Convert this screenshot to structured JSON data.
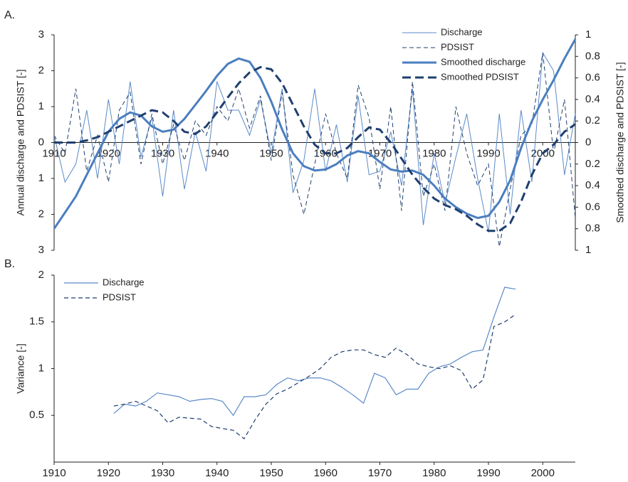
{
  "chart_data": [
    {
      "type": "line",
      "panel_label": "A.",
      "ylabel": "Annual  discharge and PDSIST [-]",
      "y2label": "Smoothed discharge and PDSIST [-]",
      "x": [
        1910,
        1912,
        1914,
        1916,
        1918,
        1920,
        1922,
        1924,
        1926,
        1928,
        1930,
        1932,
        1934,
        1936,
        1938,
        1940,
        1942,
        1944,
        1946,
        1948,
        1950,
        1952,
        1954,
        1956,
        1958,
        1960,
        1962,
        1964,
        1966,
        1968,
        1970,
        1972,
        1974,
        1976,
        1978,
        1980,
        1982,
        1984,
        1986,
        1988,
        1990,
        1992,
        1994,
        1996,
        1998,
        2000,
        2002,
        2004,
        2006
      ],
      "xlim": [
        1910,
        2006
      ],
      "xticks": [
        1910,
        1920,
        1930,
        1940,
        1950,
        1960,
        1970,
        1980,
        1990,
        2000
      ],
      "ylim": [
        -3,
        3
      ],
      "yticks": [
        {
          "value": -3,
          "label": "3"
        },
        {
          "value": -2,
          "label": "2"
        },
        {
          "value": -1,
          "label": "1"
        },
        0,
        1,
        2,
        3
      ],
      "y2lim": [
        -1,
        1
      ],
      "y2ticks": [
        {
          "value": -1,
          "label": "1"
        },
        {
          "value": -0.8,
          "label": "0.8"
        },
        {
          "value": -0.6,
          "label": "0.6"
        },
        {
          "value": -0.4,
          "label": "0.4"
        },
        {
          "value": -0.2,
          "label": "0.2"
        },
        0,
        0.2,
        0.4,
        0.6,
        0.8,
        1
      ],
      "legend": "top-right",
      "series": [
        {
          "name": "Discharge",
          "color": "#5b8ac8",
          "line_style": "solid",
          "line_width": 1,
          "values": [
            0.2,
            -1.1,
            -0.6,
            0.9,
            -1.0,
            1.2,
            -0.6,
            1.7,
            -0.4,
            0.7,
            -1.5,
            0.9,
            -1.3,
            0.3,
            -0.8,
            1.7,
            0.9,
            0.9,
            0.2,
            1.2,
            -0.3,
            1.5,
            -1.4,
            -0.5,
            1.5,
            -0.8,
            0.5,
            -1.1,
            1.3,
            -0.9,
            -0.8,
            0.3,
            -1.2,
            1.5,
            -2.3,
            -0.3,
            -1.7,
            -0.4,
            0.8,
            -1.0,
            -2.5,
            0.8,
            -2.0,
            0.9,
            -1.1,
            2.5,
            2.0,
            -0.9,
            0.8
          ]
        },
        {
          "name": "PDSIST",
          "color": "#1f3f6e",
          "line_style": "dashed",
          "line_width": 1,
          "values": [
            0.2,
            -0.3,
            1.5,
            -0.8,
            0.2,
            -1.1,
            0.9,
            1.4,
            -0.6,
            0.8,
            -0.6,
            0.5,
            -0.5,
            0.6,
            0.2,
            1.0,
            0.6,
            1.5,
            0.4,
            1.3,
            -0.5,
            1.4,
            -0.9,
            -2.0,
            -0.6,
            0.8,
            -0.3,
            -1.0,
            1.6,
            0.7,
            -1.3,
            1.0,
            -1.9,
            1.7,
            -1.5,
            -0.6,
            -1.9,
            1.0,
            -0.3,
            -1.2,
            -0.6,
            -2.9,
            -1.3,
            0.2,
            0.5,
            2.5,
            -0.3,
            1.2,
            -2.1
          ]
        },
        {
          "name": "Smoothed discharge",
          "color": "#4a7ebf",
          "line_style": "solid",
          "line_width": 3,
          "axis": "y2",
          "values": [
            -0.8,
            -0.65,
            -0.5,
            -0.3,
            -0.1,
            0.1,
            0.22,
            0.28,
            0.25,
            0.15,
            0.1,
            0.12,
            0.22,
            0.35,
            0.48,
            0.62,
            0.73,
            0.78,
            0.75,
            0.6,
            0.38,
            0.12,
            -0.1,
            -0.22,
            -0.26,
            -0.25,
            -0.2,
            -0.12,
            -0.08,
            -0.1,
            -0.18,
            -0.25,
            -0.27,
            -0.26,
            -0.3,
            -0.4,
            -0.52,
            -0.6,
            -0.66,
            -0.7,
            -0.68,
            -0.55,
            -0.35,
            -0.05,
            0.2,
            0.4,
            0.58,
            0.78,
            0.96
          ]
        },
        {
          "name": "Smoothed PDSIST",
          "color": "#1f3f6e",
          "line_style": "dashed",
          "line_width": 3,
          "axis": "y2",
          "values": [
            0,
            0,
            0,
            0.02,
            0.05,
            0.1,
            0.15,
            0.2,
            0.25,
            0.3,
            0.28,
            0.2,
            0.1,
            0.08,
            0.15,
            0.28,
            0.42,
            0.55,
            0.65,
            0.7,
            0.68,
            0.55,
            0.35,
            0.15,
            -0.02,
            -0.1,
            -0.1,
            -0.05,
            0.05,
            0.14,
            0.12,
            0.0,
            -0.15,
            -0.3,
            -0.42,
            -0.52,
            -0.58,
            -0.62,
            -0.68,
            -0.76,
            -0.82,
            -0.82,
            -0.75,
            -0.55,
            -0.3,
            -0.1,
            -0.02,
            0.1,
            0.17
          ]
        }
      ]
    },
    {
      "type": "line",
      "panel_label": "B.",
      "ylabel": "Variance [-]",
      "x": [
        1921,
        1923,
        1925,
        1927,
        1929,
        1931,
        1933,
        1935,
        1937,
        1939,
        1941,
        1943,
        1945,
        1947,
        1949,
        1951,
        1953,
        1955,
        1957,
        1959,
        1961,
        1963,
        1965,
        1967,
        1969,
        1971,
        1973,
        1975,
        1977,
        1979,
        1981,
        1983,
        1985,
        1987,
        1989,
        1991,
        1993,
        1995
      ],
      "xlim": [
        1910,
        2006
      ],
      "xticks": [
        1910,
        1920,
        1930,
        1940,
        1950,
        1960,
        1970,
        1980,
        1990,
        2000
      ],
      "ylim": [
        0,
        2
      ],
      "yticks": [
        0.5,
        1,
        1.5,
        2
      ],
      "legend": "top-left",
      "series": [
        {
          "name": "Discharge",
          "color": "#5b8ac8",
          "line_style": "solid",
          "line_width": 1.2,
          "values": [
            0.52,
            0.62,
            0.6,
            0.65,
            0.74,
            0.72,
            0.7,
            0.65,
            0.67,
            0.68,
            0.65,
            0.5,
            0.7,
            0.7,
            0.72,
            0.83,
            0.9,
            0.87,
            0.9,
            0.9,
            0.87,
            0.8,
            0.72,
            0.63,
            0.95,
            0.9,
            0.72,
            0.78,
            0.78,
            0.95,
            1.02,
            1.05,
            1.12,
            1.18,
            1.2,
            1.55,
            1.87,
            1.85
          ]
        },
        {
          "name": "PDSIST",
          "color": "#1f3f6e",
          "line_style": "dashed",
          "line_width": 1.2,
          "values": [
            0.6,
            0.62,
            0.65,
            0.6,
            0.55,
            0.42,
            0.48,
            0.47,
            0.46,
            0.38,
            0.36,
            0.34,
            0.25,
            0.45,
            0.62,
            0.73,
            0.78,
            0.85,
            0.92,
            1.0,
            1.12,
            1.18,
            1.2,
            1.2,
            1.15,
            1.12,
            1.22,
            1.15,
            1.05,
            1.02,
            1.0,
            1.03,
            0.98,
            0.78,
            0.88,
            1.45,
            1.5,
            1.58
          ]
        }
      ]
    }
  ]
}
